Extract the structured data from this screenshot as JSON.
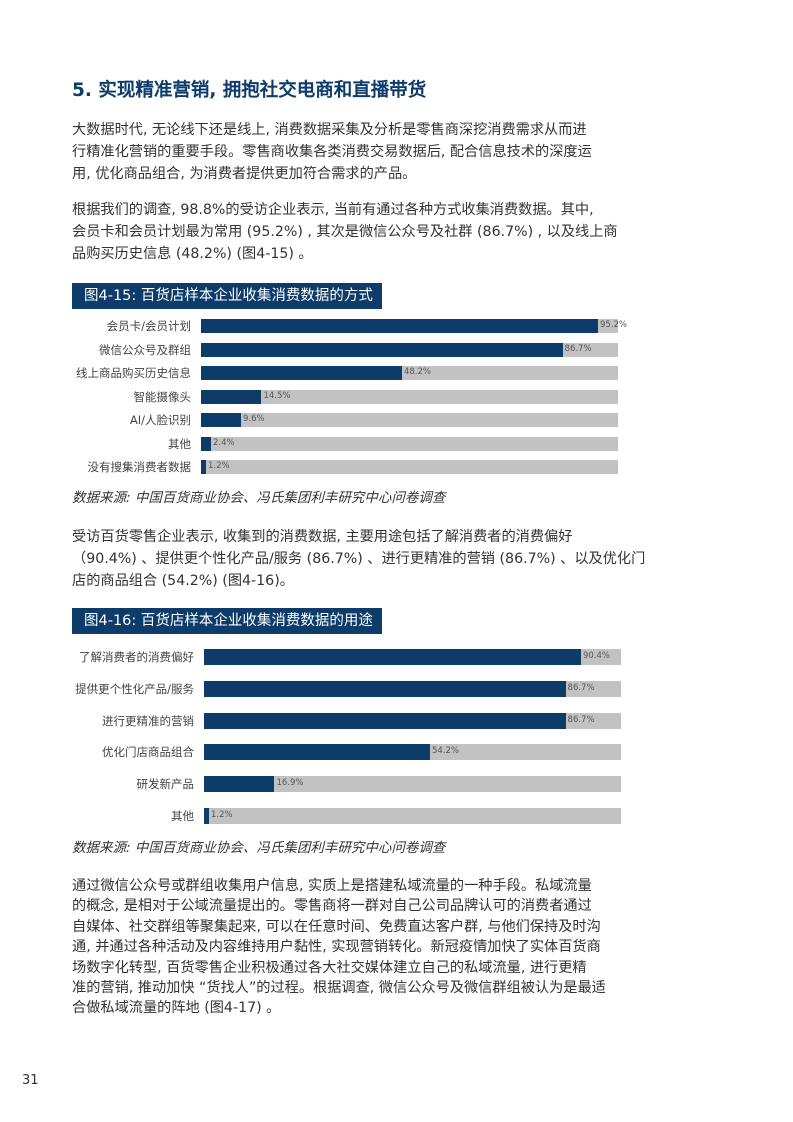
{
  "section_title": "5. 实现精准营销, 拥抱社交电商和直播带货",
  "paragraphs": {
    "p1": [
      "大数据时代, 无论线下还是线上, 消费数据采集及分析是零售商深挖消费需求从而进",
      "行精准化营销的重要手段。零售商收集各类消费交易数据后, 配合信息技术的深度运",
      "用, 优化商品组合, 为消费者提供更加符合需求的产品。"
    ],
    "p2": [
      "根据我们的调查, 98.8%的受访企业表示, 当前有通过各种方式收集消费数据。其中,",
      "会员卡和会员计划最为常用 (95.2%) , 其次是微信公众号及社群 (86.7%) , 以及线上商",
      "品购买历史信息 (48.2%)  (图4-15) 。"
    ],
    "p3": [
      "受访百货零售企业表示, 收集到的消费数据, 主要用途包括了解消费者的消费偏好",
      "（90.4%) 、提供更个性化产品/服务 (86.7%) 、进行更精准的营销 (86.7%) 、以及优化门",
      "店的商品组合 (54.2%) (图4-16)。"
    ],
    "p4": [
      "通过微信公众号或群组收集用户信息, 实质上是搭建私域流量的一种手段。私域流量",
      "的概念, 是相对于公域流量提出的。零售商将一群对自己公司品牌认可的消费者通过",
      "自媒体、社交群组等聚集起来, 可以在任意时间、免费直达客户群, 与他们保持及时沟",
      "通, 并通过各种活动及内容维持用户黏性, 实现营销转化。新冠疫情加快了实体百货商",
      "场数字化转型, 百货零售企业积极通过各大社交媒体建立自己的私域流量, 进行更精",
      "准的营销, 推动加快 “货找人”的过程。根据调查, 微信公众号及微信群组被认为是最适",
      "合做私域流量的阵地 (图4-17) 。"
    ]
  },
  "chart_data": [
    {
      "type": "bar",
      "orientation": "horizontal",
      "title": "图4-15: 百货店样本企业收集消费数据的方式",
      "categories": [
        "会员卡/会员计划",
        "微信公众号及群组",
        "线上商品购买历史信息",
        "智能摄像头",
        "AI/人脸识别",
        "其他",
        "没有搜集消费者数据"
      ],
      "values": [
        95.2,
        86.7,
        48.2,
        14.5,
        9.6,
        2.4,
        1.2
      ],
      "labels": [
        "95.2%",
        "86.7%",
        "48.2%",
        "14.5%",
        "9.6%",
        "2.4%",
        "1.2%"
      ],
      "xlim": [
        0,
        100
      ],
      "source": "数据来源: 中国百货商业协会、冯氏集团利丰研究中心问卷调查"
    },
    {
      "type": "bar",
      "orientation": "horizontal",
      "title": "图4-16: 百货店样本企业收集消费数据的用途",
      "categories": [
        "了解消费者的消费偏好",
        "提供更个性化产品/服务",
        "进行更精准的营销",
        "优化门店商品组合",
        "研发新产品",
        "其他"
      ],
      "values": [
        90.4,
        86.7,
        86.7,
        54.2,
        16.9,
        1.2
      ],
      "labels": [
        "90.4%",
        "86.7%",
        "86.7%",
        "54.2%",
        "16.9%",
        "1.2%"
      ],
      "xlim": [
        0,
        100
      ],
      "source": "数据来源: 中国百货商业协会、冯氏集团利丰研究中心问卷调查"
    }
  ],
  "colors": {
    "bar": "#0d3c6b",
    "track": "#c2c2c2",
    "title_bg": "#0d3c6b"
  },
  "page_number": "31"
}
